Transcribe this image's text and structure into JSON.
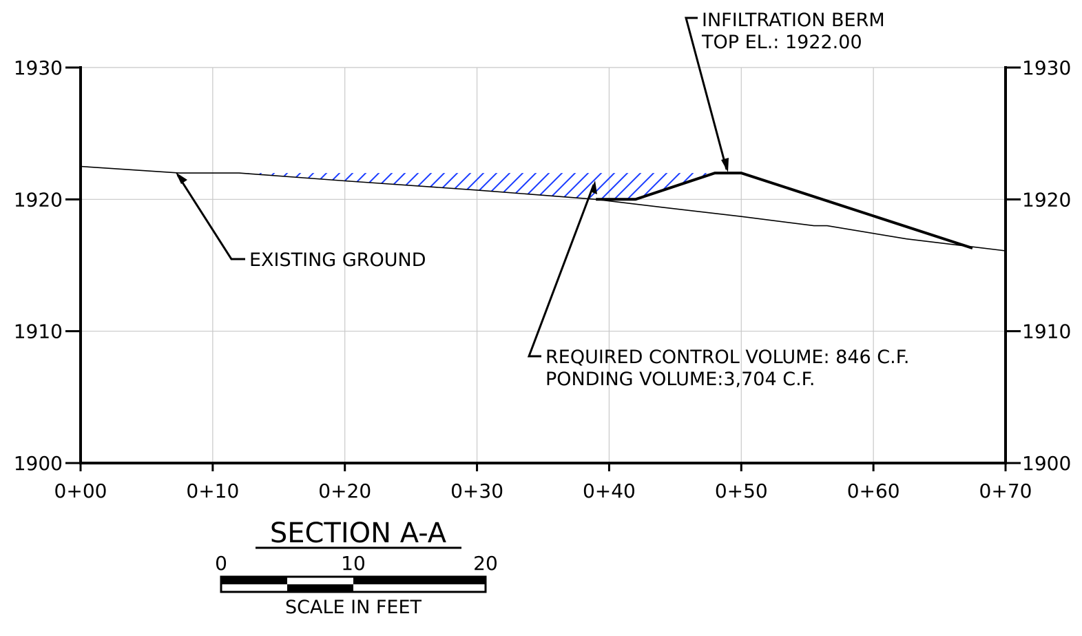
{
  "section": {
    "title": "SECTION A-A"
  },
  "axes": {
    "x_ticks": [
      "0+00",
      "0+10",
      "0+20",
      "0+30",
      "0+40",
      "0+50",
      "0+60",
      "0+70"
    ],
    "y_ticks_left": [
      "1930",
      "1920",
      "1910",
      "1900"
    ],
    "y_ticks_right": [
      "1930",
      "1920",
      "1910",
      "1900"
    ],
    "x_range_ft": [
      0,
      70
    ],
    "y_range_el": [
      1900,
      1930
    ],
    "grid": true
  },
  "annotations": {
    "berm_line1": "INFILTRATION BERM",
    "berm_line2": "TOP EL.: 1922.00",
    "existing_ground": "EXISTING GROUND",
    "control_volume": "REQUIRED CONTROL VOLUME: 846 C.F.",
    "ponding_volume": "PONDING VOLUME:3,704 C.F."
  },
  "scale_bar": {
    "labels": [
      "0",
      "10",
      "20"
    ],
    "caption": "SCALE IN FEET"
  },
  "profile": {
    "existing_ground": [
      [
        0,
        1922.5
      ],
      [
        7.5,
        1922.0
      ],
      [
        8,
        1922.0
      ],
      [
        12,
        1922.0
      ],
      [
        20,
        1921.4
      ],
      [
        30,
        1920.7
      ],
      [
        39,
        1920.0
      ],
      [
        44,
        1919.4
      ],
      [
        50,
        1918.7
      ],
      [
        55.5,
        1918.0
      ],
      [
        56.5,
        1918.0
      ],
      [
        62.5,
        1917.0
      ],
      [
        67.5,
        1916.4
      ],
      [
        70,
        1916.1
      ]
    ],
    "proposed_berm": [
      [
        39,
        1920.0
      ],
      [
        42,
        1920.0
      ],
      [
        48,
        1922.0
      ],
      [
        50,
        1922.0
      ],
      [
        67.5,
        1916.3
      ]
    ],
    "ponding_area": [
      [
        12.5,
        1922.0
      ],
      [
        48,
        1922.0
      ],
      [
        42,
        1920.0
      ],
      [
        39,
        1920.0
      ]
    ],
    "hatch_color": "#1a3cff",
    "line_color": "#000000",
    "grid_color": "#c8c8c8"
  }
}
